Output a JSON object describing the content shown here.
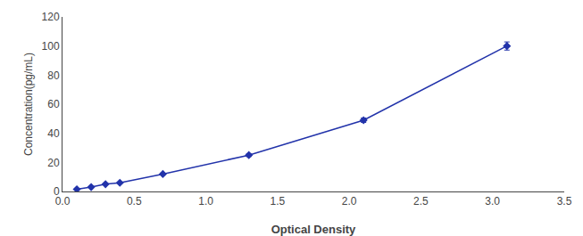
{
  "chart_data": {
    "type": "line",
    "x": [
      0.1,
      0.2,
      0.3,
      0.4,
      0.7,
      1.3,
      2.1,
      3.1
    ],
    "values": [
      1.5,
      3.0,
      5.0,
      6.0,
      12.0,
      25.0,
      49.0,
      100.0
    ],
    "errors": [
      0.3375,
      0.375,
      0.425,
      0.45,
      0.6,
      0.925,
      1.525,
      2.8
    ],
    "color": "#2233aa",
    "marker": "diamond",
    "xlabel": "Optical Density",
    "ylabel": "Concentration(pg/mL)",
    "xlim": [
      0,
      3.5
    ],
    "ylim": [
      0,
      120
    ],
    "xticks": [
      {
        "value": 0,
        "label": "0.0"
      },
      0.5,
      {
        "value": 1.0,
        "label": "1.0"
      },
      1.5,
      {
        "value": 2.0,
        "label": "2.0"
      },
      2.5,
      {
        "value": 3.0,
        "label": "3.0"
      },
      3.5
    ],
    "yticks": [
      0,
      20,
      40,
      60,
      80,
      100,
      120
    ],
    "grid": false
  }
}
